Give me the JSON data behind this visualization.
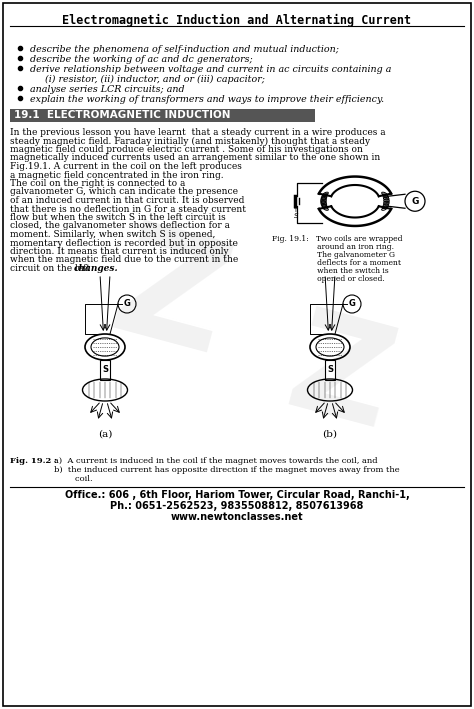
{
  "title": "Electromagnetic Induction and Alternating Current",
  "bg_color": "#ffffff",
  "section_title": "19.1  ELECTROMAGNETIC INDUCTION",
  "bullets": [
    "describe the phenomena of self-induction and mutual induction;",
    "describe the working of ac and dc generators;",
    "derive relationship between voltage and current in ac circuits containing a",
    "     (i) resistor, (ii) inductor, and or (iii) capacitor;",
    "analyse series LCR circuits; and",
    "explain the working of transformers and ways to improve their efficiency."
  ],
  "bullet_indices": [
    0,
    1,
    2,
    4,
    5
  ],
  "body_lines": [
    "In the previous lesson you have learnt  that a steady current in a wire produces a",
    "steady magnetic field. Faraday initially (and mistakenly) thought that a steady",
    "magnetic field could produce electric current . Some of his investigations on",
    "magnetically induced currents used an arrangement similar to the one shown in",
    "Fig.19.1. A current in the coil on the left produces",
    "a magnetic field concentrated in the iron ring.",
    "The coil on the right is connected to a",
    "galvanometer G, which can indicate the presence",
    "of an induced current in that circuit. It is observed",
    "that there is no deflection in G for a steady current",
    "flow but when the switch S in the left circuit is",
    "closed, the galvanometer shows deflection for a",
    "moment. Similarly, when switch S is opened,",
    "momentary deflection is recorded but in opposite",
    "direction. It means that current is induced only",
    "when the magnetic field due to the current in the",
    "circuit on the left "
  ],
  "fig191_caption": [
    "Fig. 19.1:   Two coils are wrapped",
    "                   around an iron ring.",
    "                   The galvanometer G",
    "                   deflects for a moment",
    "                   when the switch is",
    "                   opened or closed."
  ],
  "fig192_label": "Fig. 19.2 :  ",
  "fig192_a": "a)  A current is induced in the coil if the magnet moves towards the coil, and",
  "fig192_b": "b)  the induced current has opposite direction if the magnet moves away from the",
  "fig192_b2": "        coil.",
  "footer1": "Office.: 606 , 6th Floor, Hariom Tower, Circular Road, Ranchi-1,",
  "footer2": "Ph.: 0651-2562523, 9835508812, 8507613968",
  "footer3": "www.newtonclasses.net"
}
